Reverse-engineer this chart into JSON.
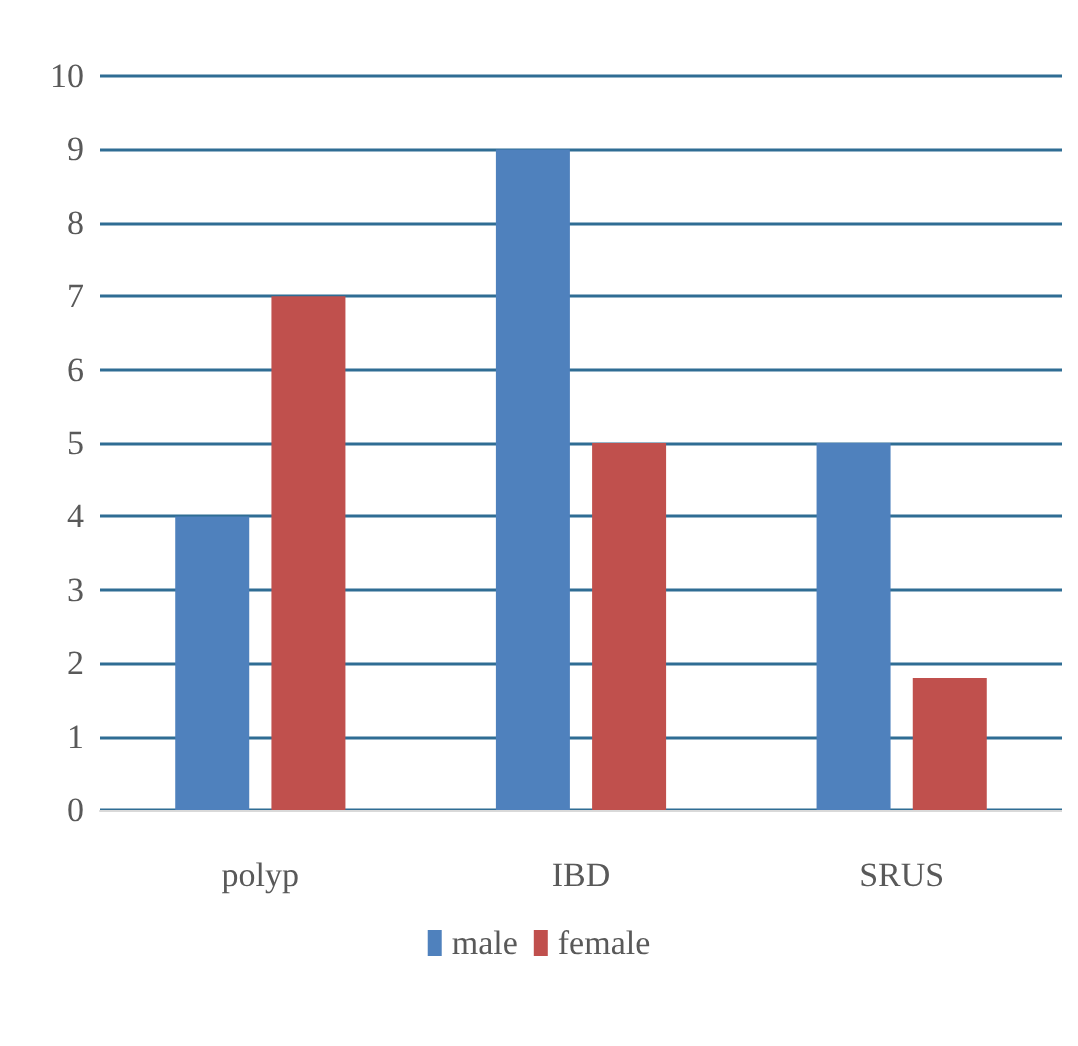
{
  "chart_data": {
    "type": "bar",
    "categories": [
      "polyp",
      "IBD",
      "SRUS"
    ],
    "series": [
      {
        "name": "male",
        "color": "#4f81bd",
        "values": [
          4,
          9,
          5
        ]
      },
      {
        "name": "female",
        "color": "#c0504d",
        "values": [
          7,
          5,
          1.8
        ]
      }
    ],
    "ylim": [
      0,
      10
    ],
    "yticks": [
      0,
      1,
      2,
      3,
      4,
      5,
      6,
      7,
      8,
      9,
      10
    ],
    "grid": "y",
    "legend": "bottom"
  }
}
